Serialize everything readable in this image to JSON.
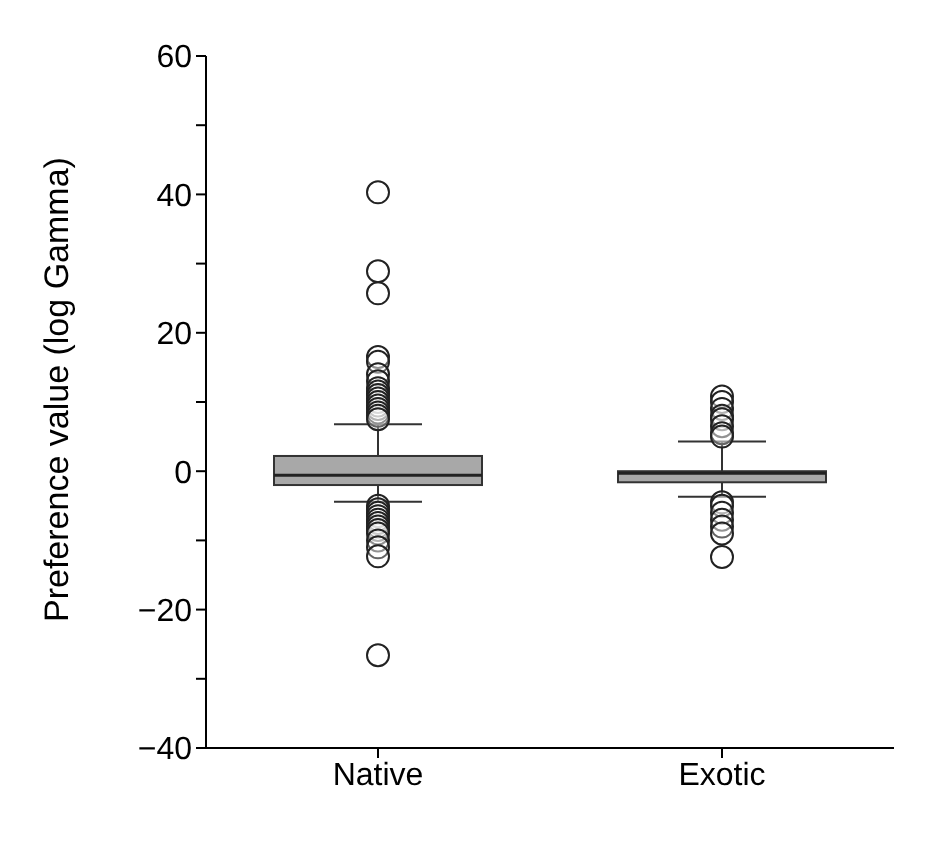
{
  "chart_data": {
    "type": "box",
    "ylabel": "Preference value (log Gamma)",
    "categories": [
      "Native",
      "Exotic"
    ],
    "boxes": [
      {
        "low": -4.4,
        "q1": -2.0,
        "median": -0.6,
        "q3": 2.2,
        "high": 6.8,
        "outliers": [
          40.3,
          28.9,
          25.7,
          16.5,
          15.8,
          14,
          13,
          12,
          11.5,
          11,
          10.5,
          10,
          9.5,
          9,
          8.5,
          8,
          7.5,
          -5,
          -5.5,
          -6,
          -6.5,
          -7,
          -7.5,
          -8,
          -8.5,
          -9,
          -10,
          -11,
          -12.3,
          -26.6
        ]
      },
      {
        "low": -3.7,
        "q1": -1.6,
        "median": -0.3,
        "q3": 0,
        "high": 4.3,
        "outliers": [
          10.8,
          10,
          9,
          8,
          7.5,
          6.5,
          5.5,
          5,
          -4.5,
          -5,
          -6,
          -7,
          -8,
          -9,
          -12.4
        ]
      }
    ],
    "color": "#a8a8a8",
    "ylim": [
      -40,
      60
    ],
    "yticks": [
      -40,
      {
        "value": -30,
        "label": null
      },
      -20,
      {
        "value": -10,
        "label": null
      },
      0,
      {
        "value": 10,
        "label": null
      },
      20,
      {
        "value": 30,
        "label": null
      },
      40,
      {
        "value": 50,
        "label": null
      },
      60
    ],
    "grid": false
  }
}
